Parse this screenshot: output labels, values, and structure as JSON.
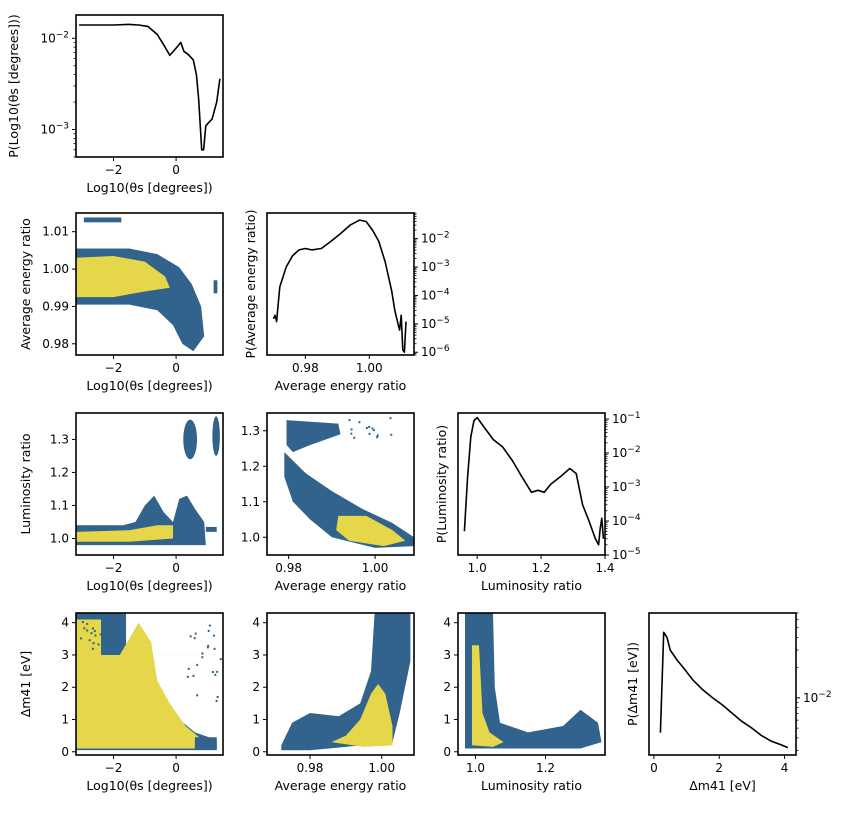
{
  "colors": {
    "outer": "#31638d",
    "inner": "#e6d64a",
    "line": "#000000"
  },
  "labels": {
    "theta": "Log10(θs [degrees])",
    "energy": "Average energy ratio",
    "lum": "Luminosity ratio",
    "dm": "Δm41 [eV]",
    "p_theta": "P(Log10(θs [degrees]))",
    "p_energy": "P(Average energy ratio)",
    "p_lum": "P(Luminosity ratio)",
    "p_dm": "P(Δm41 [eV])"
  },
  "chart_data": [
    {
      "id": "theta_marginal",
      "type": "line",
      "xlabel": "Log10(θs [degrees])",
      "ylabel": "P(Log10(θs [degrees]))",
      "yscale": "log",
      "xlim": [
        -3.2,
        1.5
      ],
      "ylim": [
        0.0005,
        0.018
      ],
      "xticks": [
        -2,
        0
      ],
      "yticks": [
        {
          "v": 0.01,
          "label": "10^-2"
        },
        {
          "v": 0.001,
          "label": "10^-3"
        }
      ],
      "x": [
        -3.1,
        -2.6,
        -2.0,
        -1.5,
        -1.2,
        -0.9,
        -0.6,
        -0.4,
        -0.2,
        0.0,
        0.15,
        0.25,
        0.4,
        0.55,
        0.65,
        0.72,
        0.78,
        0.82,
        0.88,
        0.95,
        1.05,
        1.15,
        1.3,
        1.4
      ],
      "y": [
        0.014,
        0.014,
        0.014,
        0.0142,
        0.014,
        0.0135,
        0.011,
        0.0085,
        0.0065,
        0.0078,
        0.009,
        0.0072,
        0.0066,
        0.0058,
        0.004,
        0.0022,
        0.001,
        0.0006,
        0.0006,
        0.0011,
        0.0012,
        0.0013,
        0.002,
        0.0036
      ]
    },
    {
      "id": "energy_marginal",
      "type": "line",
      "xlabel": "Average energy ratio",
      "ylabel": "P(Average energy ratio)",
      "yscale": "log",
      "yaxis_side": "right",
      "xlim": [
        0.968,
        1.014
      ],
      "ylim": [
        8e-07,
        0.08
      ],
      "xticks": [
        0.98,
        1.0
      ],
      "yticks": [
        {
          "v": 0.01,
          "label": "10^-2"
        },
        {
          "v": 0.001,
          "label": "10^-3"
        },
        {
          "v": 0.0001,
          "label": "10^-4"
        },
        {
          "v": 1e-05,
          "label": "10^-5"
        },
        {
          "v": 1e-06,
          "label": "10^-6"
        }
      ],
      "x": [
        0.97,
        0.9705,
        0.971,
        0.9715,
        0.972,
        0.974,
        0.976,
        0.978,
        0.98,
        0.982,
        0.985,
        0.988,
        0.991,
        0.994,
        0.997,
        0.999,
        1.001,
        1.003,
        1.005,
        1.007,
        1.008,
        1.009,
        1.0095,
        1.01,
        1.0105,
        1.011,
        1.0115
      ],
      "y": [
        1.5e-05,
        2e-05,
        1.2e-05,
        5e-05,
        0.0002,
        0.001,
        0.0025,
        0.004,
        0.0045,
        0.004,
        0.0045,
        0.008,
        0.015,
        0.03,
        0.045,
        0.04,
        0.02,
        0.008,
        0.0015,
        0.00015,
        3e-05,
        1e-05,
        6e-06,
        2e-05,
        1.2e-06,
        1e-06,
        1.2e-05
      ]
    },
    {
      "id": "lum_marginal",
      "type": "line",
      "xlabel": "Luminosity ratio",
      "ylabel": "P(Luminosity ratio)",
      "yscale": "log",
      "yaxis_side": "right",
      "xlim": [
        0.94,
        1.4
      ],
      "ylim": [
        1e-05,
        0.15
      ],
      "xticks": [
        1.0,
        1.2,
        1.4
      ],
      "yticks": [
        {
          "v": 0.1,
          "label": "10^-1"
        },
        {
          "v": 0.01,
          "label": "10^-2"
        },
        {
          "v": 0.001,
          "label": "10^-3"
        },
        {
          "v": 0.0001,
          "label": "10^-4"
        },
        {
          "v": 1e-05,
          "label": "10^-5"
        }
      ],
      "x": [
        0.96,
        0.97,
        0.98,
        0.99,
        1.0,
        1.02,
        1.05,
        1.08,
        1.11,
        1.14,
        1.17,
        1.19,
        1.21,
        1.23,
        1.26,
        1.29,
        1.31,
        1.33,
        1.35,
        1.37,
        1.38,
        1.385,
        1.39,
        1.395
      ],
      "y": [
        5e-05,
        0.002,
        0.03,
        0.09,
        0.11,
        0.06,
        0.025,
        0.015,
        0.006,
        0.002,
        0.0007,
        0.0008,
        0.0007,
        0.0012,
        0.002,
        0.0035,
        0.0025,
        0.0003,
        0.0001,
        3e-05,
        2e-05,
        6e-05,
        0.00012,
        3e-05
      ]
    },
    {
      "id": "dm_marginal",
      "type": "line",
      "xlabel": "Δm41 [eV]",
      "ylabel": "P(Δm41 [eV])",
      "yscale": "log",
      "yaxis_side": "right",
      "xlim": [
        -0.15,
        4.35
      ],
      "ylim": [
        0.0027,
        0.07
      ],
      "xticks": [
        0,
        2,
        4
      ],
      "yticks": [
        {
          "v": 0.01,
          "label": "10^-2"
        }
      ],
      "x": [
        0.2,
        0.3,
        0.4,
        0.5,
        0.7,
        0.9,
        1.2,
        1.5,
        1.8,
        2.1,
        2.4,
        2.7,
        3.0,
        3.3,
        3.6,
        3.9,
        4.1
      ],
      "y": [
        0.0045,
        0.045,
        0.04,
        0.03,
        0.024,
        0.02,
        0.015,
        0.012,
        0.01,
        0.0085,
        0.007,
        0.0058,
        0.005,
        0.0042,
        0.0037,
        0.0034,
        0.0032
      ]
    },
    {
      "id": "theta_vs_energy",
      "type": "heatmap",
      "xlabel": "Log10(θs [degrees])",
      "ylabel": "Average energy ratio",
      "xlim": [
        -3.2,
        1.5
      ],
      "ylim": [
        0.977,
        1.015
      ],
      "xticks": [
        -2,
        0
      ],
      "yticks": [
        0.98,
        0.99,
        1.0,
        1.01
      ]
    },
    {
      "id": "theta_vs_lum",
      "type": "heatmap",
      "xlabel": "Log10(θs [degrees])",
      "ylabel": "Luminosity ratio",
      "xlim": [
        -3.2,
        1.5
      ],
      "ylim": [
        0.95,
        1.38
      ],
      "xticks": [
        -2,
        0
      ],
      "yticks": [
        1.0,
        1.1,
        1.2,
        1.3
      ]
    },
    {
      "id": "energy_vs_lum",
      "type": "heatmap",
      "xlabel": "Average energy ratio",
      "ylabel": "",
      "xlim": [
        0.975,
        1.009
      ],
      "ylim": [
        0.95,
        1.35
      ],
      "xticks": [
        0.98,
        1.0
      ],
      "yticks": [
        1.0,
        1.1,
        1.2,
        1.3
      ]
    },
    {
      "id": "theta_vs_dm",
      "type": "heatmap",
      "xlabel": "Log10(θs [degrees])",
      "ylabel": "Δm41 [eV]",
      "xlim": [
        -3.2,
        1.5
      ],
      "ylim": [
        -0.1,
        4.3
      ],
      "xticks": [
        -2,
        0
      ],
      "yticks": [
        0,
        1,
        2,
        3,
        4
      ]
    },
    {
      "id": "energy_vs_dm",
      "type": "heatmap",
      "xlabel": "Average energy ratio",
      "ylabel": "",
      "xlim": [
        0.968,
        1.009
      ],
      "ylim": [
        -0.1,
        4.3
      ],
      "xticks": [
        0.98,
        1.0
      ],
      "yticks": [
        0,
        1,
        2,
        3,
        4
      ]
    },
    {
      "id": "lum_vs_dm",
      "type": "heatmap",
      "xlabel": "Luminosity ratio",
      "ylabel": "",
      "xlim": [
        0.95,
        1.37
      ],
      "ylim": [
        -0.1,
        4.3
      ],
      "xticks": [
        1.0,
        1.2
      ],
      "yticks": [
        0,
        1,
        2,
        3,
        4
      ]
    }
  ]
}
